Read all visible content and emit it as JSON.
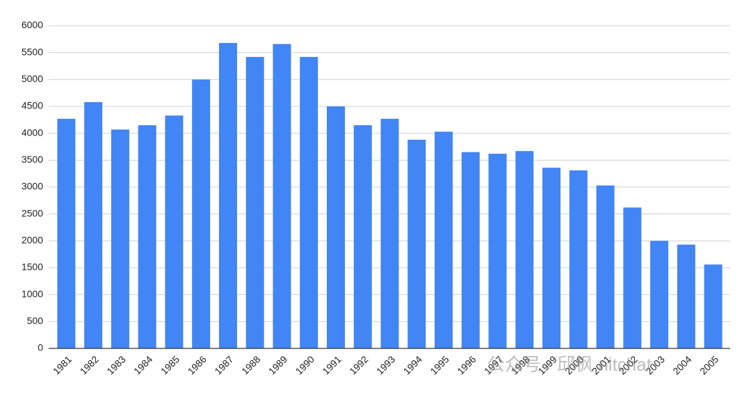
{
  "chart_data": {
    "type": "bar",
    "categories": [
      "1981",
      "1982",
      "1983",
      "1984",
      "1985",
      "1986",
      "1987",
      "1988",
      "1989",
      "1990",
      "1991",
      "1992",
      "1993",
      "1994",
      "1995",
      "1996",
      "1997",
      "1998",
      "1999",
      "2000",
      "2001",
      "2002",
      "2003",
      "2004",
      "2005"
    ],
    "values": [
      4270,
      4580,
      4070,
      4150,
      4330,
      5000,
      5680,
      5420,
      5660,
      5420,
      4500,
      4150,
      4270,
      3880,
      4030,
      3650,
      3620,
      3670,
      3360,
      3310,
      3030,
      2620,
      2000,
      1930,
      1560
    ],
    "color": "#4285f4",
    "ylim": [
      0,
      6000
    ],
    "yticks": [
      0,
      500,
      1000,
      1500,
      2000,
      2500,
      3000,
      3500,
      4000,
      4500,
      5000,
      5500,
      6000
    ],
    "grid": true,
    "watermark": "公众号 · 邱枫 nitchat"
  }
}
